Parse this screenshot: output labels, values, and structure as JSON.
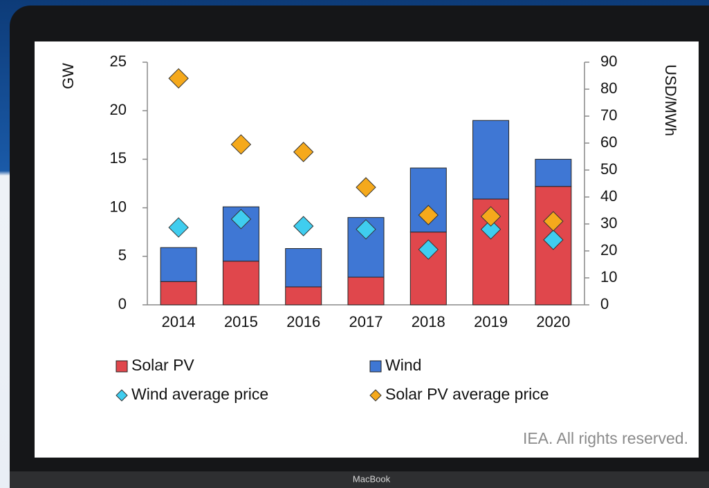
{
  "device_label": "MacBook",
  "chart_data": {
    "type": "bar",
    "stacked": true,
    "source": "IEA. All rights reserved.",
    "ylabel": "GW",
    "y2label": "USD/MWh",
    "categories": [
      "2014",
      "2015",
      "2016",
      "2017",
      "2018",
      "2019",
      "2020"
    ],
    "series": [
      {
        "name": "Solar PV",
        "type": "bar",
        "color": "#e0474c",
        "values": [
          2.4,
          4.5,
          1.85,
          2.85,
          7.5,
          10.9,
          12.2
        ]
      },
      {
        "name": "Wind",
        "type": "bar",
        "color": "#3f77d4",
        "values": [
          3.5,
          5.6,
          3.95,
          6.15,
          6.6,
          8.1,
          2.8
        ]
      },
      {
        "name": "Wind average price",
        "type": "scatter",
        "axis": "y2",
        "color": "#3fcdef",
        "values": [
          28.7,
          31.8,
          29.2,
          28,
          20.5,
          28,
          24.1
        ]
      },
      {
        "name": "Solar PV average price",
        "type": "scatter",
        "axis": "y2",
        "color": "#f5a91c",
        "values": [
          84,
          59.5,
          56.7,
          43.6,
          33.3,
          32.8,
          31
        ]
      }
    ],
    "ylim": [
      0,
      25
    ],
    "yticks": [
      0,
      5,
      10,
      15,
      20,
      25
    ],
    "y2lim": [
      0,
      90
    ],
    "y2ticks": [
      0,
      10,
      20,
      30,
      40,
      50,
      60,
      70,
      80,
      90
    ],
    "grid": false
  }
}
